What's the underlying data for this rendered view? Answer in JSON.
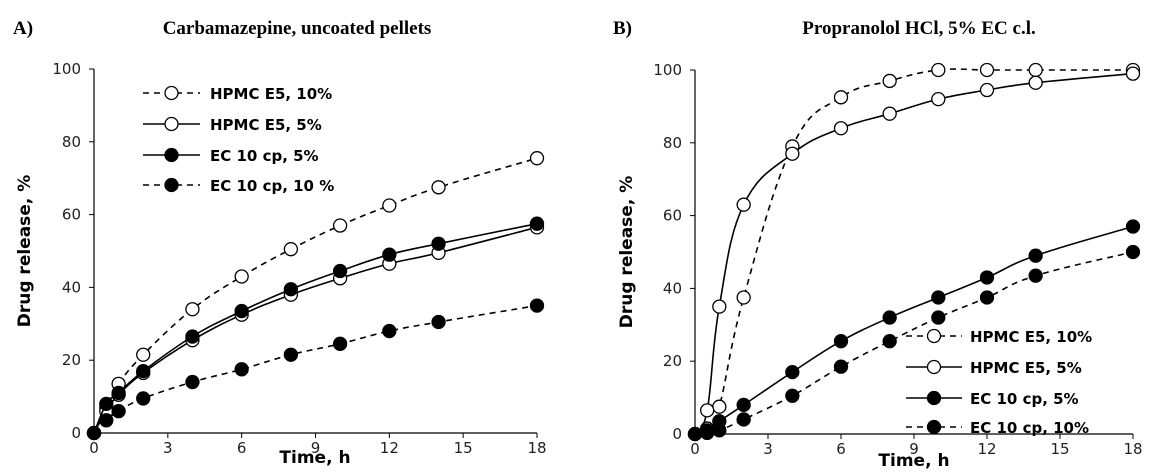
{
  "chart_data": [
    {
      "type": "line",
      "panel_label": "A)",
      "title": "Carbamazepine, uncoated pellets",
      "xlabel": "Time, h",
      "ylabel": "Drug release, %",
      "xlim": [
        0,
        18
      ],
      "ylim": [
        0,
        100
      ],
      "xticks": [
        "0",
        "3",
        "6",
        "9",
        "12",
        "15",
        "18"
      ],
      "yticks": [
        "0",
        "20",
        "40",
        "60",
        "80",
        "100"
      ],
      "grid": false,
      "legend_position": "top-left",
      "series": [
        {
          "name": "HPMC E5, 10%",
          "marker": "open-circle",
          "line": "dashed",
          "smooth": true,
          "x": [
            0,
            0.5,
            1,
            2,
            4,
            6,
            8,
            10,
            12,
            14,
            18
          ],
          "y": [
            0,
            7,
            13.5,
            21.5,
            34,
            43,
            50.5,
            57,
            62.5,
            67.5,
            75.5
          ]
        },
        {
          "name": "HPMC E5, 5%",
          "marker": "open-circle",
          "line": "solid",
          "smooth": true,
          "x": [
            0,
            0.5,
            1,
            2,
            4,
            6,
            8,
            10,
            12,
            14,
            18
          ],
          "y": [
            0,
            6,
            10.5,
            16.5,
            25.5,
            32.5,
            38,
            42.5,
            46.5,
            49.5,
            56.5
          ]
        },
        {
          "name": "EC 10 cp, 5%",
          "marker": "filled-circle",
          "line": "solid",
          "smooth": true,
          "x": [
            0,
            0.5,
            1,
            2,
            4,
            6,
            8,
            10,
            12,
            14,
            18
          ],
          "y": [
            0,
            8,
            11,
            17,
            26.5,
            33.5,
            39.5,
            44.5,
            49,
            52,
            57.5
          ]
        },
        {
          "name": "EC 10 cp, 10 %",
          "marker": "filled-circle",
          "line": "dashed",
          "smooth": true,
          "x": [
            0,
            0.5,
            1,
            2,
            4,
            6,
            8,
            10,
            12,
            14,
            18
          ],
          "y": [
            0,
            3.5,
            6,
            9.5,
            14,
            17.5,
            21.5,
            24.5,
            28,
            30.5,
            35
          ]
        }
      ]
    },
    {
      "type": "line",
      "panel_label": "B)",
      "title": "Propranolol HCl, 5% EC c.l.",
      "xlabel": "Time, h",
      "ylabel": "Drug release, %",
      "xlim": [
        0,
        18
      ],
      "ylim": [
        0,
        100
      ],
      "xticks": [
        "0",
        "3",
        "6",
        "9",
        "12",
        "15",
        "18"
      ],
      "yticks": [
        "0",
        "20",
        "40",
        "60",
        "80",
        "100"
      ],
      "grid": false,
      "legend_position": "bottom-right",
      "series": [
        {
          "name": "HPMC E5, 10%",
          "marker": "open-circle",
          "line": "dashed",
          "smooth": true,
          "x": [
            0,
            0.5,
            1,
            2,
            4,
            6,
            8,
            10,
            12,
            14,
            18
          ],
          "y": [
            0,
            1.5,
            7.5,
            37.5,
            79,
            92.5,
            97,
            100,
            100,
            100,
            100
          ]
        },
        {
          "name": "HPMC E5, 5%",
          "marker": "open-circle",
          "line": "solid",
          "smooth": true,
          "x": [
            0,
            0.5,
            1,
            2,
            4,
            6,
            8,
            10,
            12,
            14,
            18
          ],
          "y": [
            0,
            6.5,
            35,
            63,
            77,
            84,
            88,
            92,
            94.5,
            96.5,
            99
          ]
        },
        {
          "name": "EC 10 cp, 5%",
          "marker": "filled-circle",
          "line": "solid",
          "smooth": true,
          "x": [
            0,
            0.5,
            1,
            2,
            4,
            6,
            8,
            10,
            12,
            14,
            18
          ],
          "y": [
            0,
            1,
            3.5,
            8,
            17,
            25.5,
            32,
            37.5,
            43,
            49,
            57
          ]
        },
        {
          "name": "EC 10 cp, 10%",
          "marker": "filled-circle",
          "line": "dashed",
          "smooth": true,
          "x": [
            0,
            0.5,
            1,
            2,
            4,
            6,
            8,
            10,
            12,
            14,
            18
          ],
          "y": [
            0,
            0.3,
            1,
            4,
            10.5,
            18.5,
            25.5,
            32,
            37.5,
            43.5,
            50
          ]
        }
      ]
    }
  ]
}
